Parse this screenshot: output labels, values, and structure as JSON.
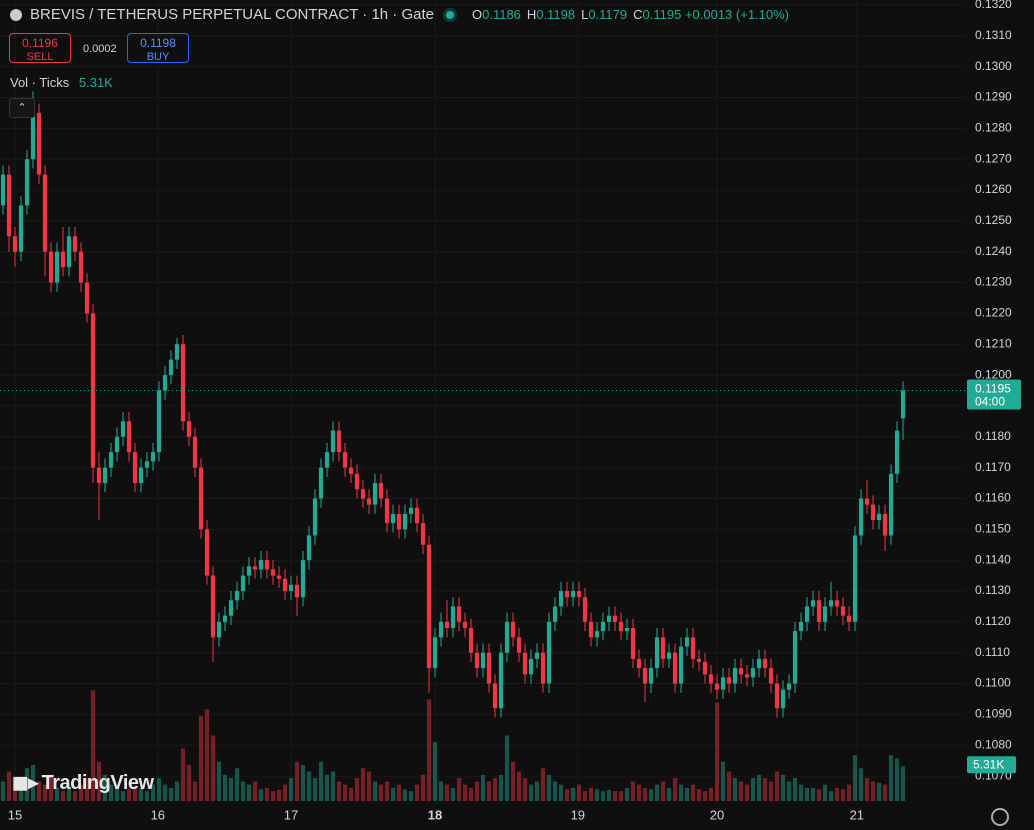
{
  "header": {
    "title": "BREVIS / TETHERUS PERPETUAL CONTRACT · 1h · Gate",
    "o": "O",
    "h": "H",
    "l": "L",
    "c": "C",
    "change": "+0.0013 (+1.10%)",
    "sell_price": 0.1196,
    "sell": "SELL",
    "spread": 0.0002,
    "buy_price": 0.1198,
    "buy": "BUY",
    "vol_label": "Vol · Ticks",
    "countdown": "04:00",
    "watermark": "TradingView"
  },
  "chart_data": {
    "type": "candlestick",
    "up_color": "#22ab94",
    "down_color": "#f23645",
    "grid": true,
    "xlim": [
      -0.5,
      160.33
    ],
    "xticks": [
      {
        "value": 2,
        "label": "15"
      },
      {
        "value": 25.8,
        "label": "16"
      },
      {
        "value": 48,
        "label": "17"
      },
      {
        "value": 72,
        "label": "18"
      },
      {
        "value": 95.8,
        "label": "19"
      },
      {
        "value": 119,
        "label": "20"
      },
      {
        "value": 142.3,
        "label": "21"
      }
    ],
    "ylim": [
      0.10603,
      0.13216
    ],
    "yticks": [
      {
        "value": 0.107,
        "label": "0.1070"
      },
      {
        "value": 0.108,
        "label": "0.1080"
      },
      {
        "value": 0.109,
        "label": "0.1090"
      },
      {
        "value": 0.11,
        "label": "0.1100"
      },
      {
        "value": 0.111,
        "label": "0.1110"
      },
      {
        "value": 0.112,
        "label": "0.1120"
      },
      {
        "value": 0.113,
        "label": "0.1130"
      },
      {
        "value": 0.114,
        "label": "0.1140"
      },
      {
        "value": 0.115,
        "label": "0.1150"
      },
      {
        "value": 0.116,
        "label": "0.1160"
      },
      {
        "value": 0.117,
        "label": "0.1170"
      },
      {
        "value": 0.118,
        "label": "0.1180"
      },
      {
        "value": 0.119,
        "label": "0.1190"
      },
      {
        "value": 0.12,
        "label": "0.1200"
      },
      {
        "value": 0.121,
        "label": "0.1210"
      },
      {
        "value": 0.122,
        "label": "0.1220"
      },
      {
        "value": 0.123,
        "label": "0.1230"
      },
      {
        "value": 0.124,
        "label": "0.1240"
      },
      {
        "value": 0.125,
        "label": "0.1250"
      },
      {
        "value": 0.126,
        "label": "0.1260"
      },
      {
        "value": 0.127,
        "label": "0.1270"
      },
      {
        "value": 0.128,
        "label": "0.1280"
      },
      {
        "value": 0.129,
        "label": "0.1290"
      },
      {
        "value": 0.13,
        "label": "0.1300"
      },
      {
        "value": 0.131,
        "label": "0.1310"
      },
      {
        "value": 0.132,
        "label": "0.1320"
      }
    ],
    "volume_ylim": [
      0,
      20000
    ],
    "last_volume_label": "5.31K",
    "candles": [
      [
        0.1255,
        0.1268,
        0.1252,
        0.1265
      ],
      [
        0.1265,
        0.1268,
        0.124,
        0.1245
      ],
      [
        0.1245,
        0.1248,
        0.1235,
        0.124
      ],
      [
        0.124,
        0.1258,
        0.1237,
        0.1255
      ],
      [
        0.1255,
        0.1273,
        0.1252,
        0.127
      ],
      [
        0.127,
        0.1292,
        0.1267,
        0.1285
      ],
      [
        0.1285,
        0.1288,
        0.1262,
        0.1265
      ],
      [
        0.1265,
        0.1268,
        0.1232,
        0.124
      ],
      [
        0.124,
        0.1243,
        0.1227,
        0.123
      ],
      [
        0.123,
        0.1243,
        0.1227,
        0.124
      ],
      [
        0.124,
        0.1248,
        0.1232,
        0.1235
      ],
      [
        0.1235,
        0.1248,
        0.1232,
        0.1245
      ],
      [
        0.1245,
        0.1248,
        0.1237,
        0.124
      ],
      [
        0.124,
        0.1243,
        0.1227,
        0.123
      ],
      [
        0.123,
        0.1233,
        0.1217,
        0.122
      ],
      [
        0.122,
        0.1223,
        0.1165,
        0.117
      ],
      [
        0.117,
        0.1175,
        0.1153,
        0.1165
      ],
      [
        0.1165,
        0.1173,
        0.1162,
        0.117
      ],
      [
        0.117,
        0.1178,
        0.1167,
        0.1175
      ],
      [
        0.1175,
        0.1183,
        0.1172,
        0.118
      ],
      [
        0.118,
        0.1188,
        0.1177,
        0.1185
      ],
      [
        0.1185,
        0.1188,
        0.1172,
        0.1175
      ],
      [
        0.1175,
        0.1178,
        0.1162,
        0.1165
      ],
      [
        0.1165,
        0.1173,
        0.1162,
        0.117
      ],
      [
        0.117,
        0.1175,
        0.1167,
        0.1172
      ],
      [
        0.1172,
        0.1178,
        0.1169,
        0.1175
      ],
      [
        0.1175,
        0.1198,
        0.1172,
        0.1195
      ],
      [
        0.1195,
        0.1203,
        0.1192,
        0.12
      ],
      [
        0.12,
        0.1208,
        0.1197,
        0.1205
      ],
      [
        0.1205,
        0.1212,
        0.1202,
        0.121
      ],
      [
        0.121,
        0.1213,
        0.1182,
        0.1185
      ],
      [
        0.1185,
        0.1188,
        0.1177,
        0.118
      ],
      [
        0.118,
        0.1183,
        0.1167,
        0.117
      ],
      [
        0.117,
        0.1173,
        0.1147,
        0.115
      ],
      [
        0.115,
        0.1153,
        0.1132,
        0.1135
      ],
      [
        0.1135,
        0.1138,
        0.1107,
        0.1115
      ],
      [
        0.1115,
        0.1123,
        0.1112,
        0.112
      ],
      [
        0.112,
        0.1125,
        0.1117,
        0.1122
      ],
      [
        0.1122,
        0.113,
        0.1119,
        0.1127
      ],
      [
        0.1127,
        0.1133,
        0.1124,
        0.113
      ],
      [
        0.113,
        0.1138,
        0.1127,
        0.1135
      ],
      [
        0.1135,
        0.1141,
        0.1132,
        0.1138
      ],
      [
        0.1138,
        0.1141,
        0.1134,
        0.1137
      ],
      [
        0.1137,
        0.1143,
        0.1134,
        0.114
      ],
      [
        0.114,
        0.1143,
        0.1134,
        0.1137
      ],
      [
        0.1137,
        0.114,
        0.1132,
        0.1135
      ],
      [
        0.1135,
        0.1138,
        0.1131,
        0.1134
      ],
      [
        0.1134,
        0.1137,
        0.1127,
        0.113
      ],
      [
        0.113,
        0.1135,
        0.1127,
        0.1132
      ],
      [
        0.1132,
        0.1135,
        0.1122,
        0.1128
      ],
      [
        0.1128,
        0.1143,
        0.1125,
        0.114
      ],
      [
        0.114,
        0.1151,
        0.1137,
        0.1148
      ],
      [
        0.1148,
        0.1163,
        0.1145,
        0.116
      ],
      [
        0.116,
        0.1173,
        0.1157,
        0.117
      ],
      [
        0.117,
        0.1178,
        0.1167,
        0.1175
      ],
      [
        0.1175,
        0.1185,
        0.1172,
        0.1182
      ],
      [
        0.1182,
        0.1185,
        0.1172,
        0.1175
      ],
      [
        0.1175,
        0.1178,
        0.1167,
        0.117
      ],
      [
        0.117,
        0.1173,
        0.1165,
        0.1168
      ],
      [
        0.1168,
        0.1171,
        0.116,
        0.1163
      ],
      [
        0.1163,
        0.1166,
        0.1157,
        0.116
      ],
      [
        0.116,
        0.1163,
        0.1155,
        0.1158
      ],
      [
        0.1158,
        0.1168,
        0.1155,
        0.1165
      ],
      [
        0.1165,
        0.1168,
        0.1157,
        0.116
      ],
      [
        0.116,
        0.1163,
        0.1149,
        0.1152
      ],
      [
        0.1152,
        0.1158,
        0.1149,
        0.1155
      ],
      [
        0.1155,
        0.1158,
        0.1147,
        0.115
      ],
      [
        0.115,
        0.1158,
        0.1147,
        0.1155
      ],
      [
        0.1155,
        0.116,
        0.1152,
        0.1157
      ],
      [
        0.1157,
        0.116,
        0.1149,
        0.1152
      ],
      [
        0.1152,
        0.1155,
        0.1142,
        0.1145
      ],
      [
        0.1145,
        0.1148,
        0.1097,
        0.1105
      ],
      [
        0.1105,
        0.1118,
        0.1102,
        0.1115
      ],
      [
        0.1115,
        0.1123,
        0.1112,
        0.112
      ],
      [
        0.112,
        0.1127,
        0.1115,
        0.1118
      ],
      [
        0.1118,
        0.1128,
        0.1115,
        0.1125
      ],
      [
        0.1125,
        0.1128,
        0.1117,
        0.112
      ],
      [
        0.112,
        0.1123,
        0.1115,
        0.1118
      ],
      [
        0.1118,
        0.1121,
        0.1107,
        0.111
      ],
      [
        0.111,
        0.1113,
        0.1102,
        0.1105
      ],
      [
        0.1105,
        0.1113,
        0.1102,
        0.111
      ],
      [
        0.111,
        0.1113,
        0.1097,
        0.11
      ],
      [
        0.11,
        0.1103,
        0.1089,
        0.1092
      ],
      [
        0.1092,
        0.1113,
        0.1089,
        0.111
      ],
      [
        0.111,
        0.1123,
        0.1107,
        0.112
      ],
      [
        0.112,
        0.1123,
        0.1112,
        0.1115
      ],
      [
        0.1115,
        0.1118,
        0.1107,
        0.111
      ],
      [
        0.111,
        0.1113,
        0.11,
        0.1103
      ],
      [
        0.1103,
        0.1111,
        0.11,
        0.1108
      ],
      [
        0.1108,
        0.1113,
        0.1105,
        0.111
      ],
      [
        0.111,
        0.1113,
        0.1097,
        0.11
      ],
      [
        0.11,
        0.1123,
        0.1097,
        0.112
      ],
      [
        0.112,
        0.1128,
        0.1117,
        0.1125
      ],
      [
        0.1125,
        0.1133,
        0.1122,
        0.113
      ],
      [
        0.113,
        0.1133,
        0.1125,
        0.1128
      ],
      [
        0.1128,
        0.1133,
        0.1125,
        0.113
      ],
      [
        0.113,
        0.1133,
        0.1125,
        0.1128
      ],
      [
        0.1128,
        0.1131,
        0.1117,
        0.112
      ],
      [
        0.112,
        0.1123,
        0.1112,
        0.1115
      ],
      [
        0.1115,
        0.112,
        0.1112,
        0.1117
      ],
      [
        0.1117,
        0.1123,
        0.1114,
        0.112
      ],
      [
        0.112,
        0.1125,
        0.1117,
        0.1122
      ],
      [
        0.1122,
        0.1125,
        0.1117,
        0.112
      ],
      [
        0.112,
        0.1123,
        0.1114,
        0.1117
      ],
      [
        0.1117,
        0.1121,
        0.1114,
        0.1118
      ],
      [
        0.1118,
        0.1121,
        0.1105,
        0.1108
      ],
      [
        0.1108,
        0.1111,
        0.1102,
        0.1105
      ],
      [
        0.1105,
        0.1108,
        0.1094,
        0.11
      ],
      [
        0.11,
        0.1108,
        0.1097,
        0.1105
      ],
      [
        0.1105,
        0.1118,
        0.1102,
        0.1115
      ],
      [
        0.1115,
        0.1118,
        0.1105,
        0.1108
      ],
      [
        0.1108,
        0.1113,
        0.1105,
        0.111
      ],
      [
        0.111,
        0.1113,
        0.1097,
        0.11
      ],
      [
        0.11,
        0.1115,
        0.1097,
        0.1112
      ],
      [
        0.1112,
        0.1118,
        0.1109,
        0.1115
      ],
      [
        0.1115,
        0.1118,
        0.1105,
        0.1108
      ],
      [
        0.1108,
        0.1111,
        0.1104,
        0.1107
      ],
      [
        0.1107,
        0.111,
        0.11,
        0.1103
      ],
      [
        0.1103,
        0.1106,
        0.1097,
        0.11
      ],
      [
        0.11,
        0.1103,
        0.1095,
        0.1098
      ],
      [
        0.1098,
        0.1105,
        0.1095,
        0.1102
      ],
      [
        0.1102,
        0.1105,
        0.1097,
        0.11
      ],
      [
        0.11,
        0.1108,
        0.1097,
        0.1105
      ],
      [
        0.1105,
        0.1108,
        0.11,
        0.1103
      ],
      [
        0.1103,
        0.1106,
        0.1099,
        0.1102
      ],
      [
        0.1102,
        0.1108,
        0.1099,
        0.1105
      ],
      [
        0.1105,
        0.1111,
        0.1102,
        0.1108
      ],
      [
        0.1108,
        0.1111,
        0.1102,
        0.1105
      ],
      [
        0.1105,
        0.1108,
        0.1097,
        0.11
      ],
      [
        0.11,
        0.1103,
        0.1089,
        0.1092
      ],
      [
        0.1092,
        0.1101,
        0.1089,
        0.1098
      ],
      [
        0.1098,
        0.1103,
        0.1095,
        0.11
      ],
      [
        0.11,
        0.112,
        0.1097,
        0.1117
      ],
      [
        0.1117,
        0.1123,
        0.1114,
        0.112
      ],
      [
        0.112,
        0.1128,
        0.1117,
        0.1125
      ],
      [
        0.1125,
        0.113,
        0.1122,
        0.1127
      ],
      [
        0.1127,
        0.113,
        0.1117,
        0.112
      ],
      [
        0.112,
        0.1128,
        0.1117,
        0.1125
      ],
      [
        0.1125,
        0.1133,
        0.1122,
        0.1127
      ],
      [
        0.1127,
        0.113,
        0.1122,
        0.1125
      ],
      [
        0.1125,
        0.1128,
        0.1119,
        0.1122
      ],
      [
        0.1122,
        0.1125,
        0.1117,
        0.112
      ],
      [
        0.112,
        0.1151,
        0.1117,
        0.1148
      ],
      [
        0.1148,
        0.1163,
        0.1145,
        0.116
      ],
      [
        0.116,
        0.1166,
        0.1155,
        0.1158
      ],
      [
        0.1158,
        0.1161,
        0.115,
        0.1153
      ],
      [
        0.1153,
        0.1158,
        0.115,
        0.1155
      ],
      [
        0.1155,
        0.1158,
        0.1143,
        0.1148
      ],
      [
        0.1148,
        0.1171,
        0.1145,
        0.1168
      ],
      [
        0.1168,
        0.1185,
        0.1165,
        0.1182
      ],
      [
        0.1186,
        0.1198,
        0.1179,
        0.1195
      ]
    ],
    "volume": [
      3000,
      4500,
      3500,
      2500,
      5000,
      5500,
      3000,
      2500,
      4000,
      2000,
      1500,
      2000,
      1500,
      2500,
      3500,
      16900,
      6000,
      4000,
      2500,
      2000,
      1500,
      1800,
      2200,
      2000,
      1500,
      2500,
      3500,
      2500,
      2000,
      3000,
      8000,
      5500,
      3000,
      13000,
      14000,
      10000,
      6000,
      4000,
      3500,
      5000,
      3000,
      2500,
      3000,
      1800,
      2000,
      1500,
      1700,
      2500,
      3500,
      6000,
      5500,
      4500,
      3500,
      6000,
      4000,
      4500,
      3000,
      2500,
      2000,
      3500,
      5000,
      4500,
      3000,
      2500,
      3000,
      2000,
      2500,
      1800,
      1500,
      2500,
      4000,
      15500,
      9000,
      3000,
      2500,
      2000,
      3500,
      2500,
      2000,
      3000,
      4000,
      3000,
      3500,
      4000,
      10000,
      6000,
      4500,
      3500,
      2500,
      3000,
      5000,
      4000,
      3000,
      2500,
      1800,
      2000,
      2500,
      1500,
      2000,
      1800,
      1500,
      1700,
      1500,
      1500,
      2000,
      3000,
      2500,
      2000,
      1800,
      2500,
      3000,
      2000,
      3500,
      2500,
      2000,
      2500,
      1800,
      1500,
      2000,
      15000,
      6000,
      4500,
      3500,
      3000,
      2500,
      3500,
      4000,
      3500,
      3000,
      4500,
      4000,
      3000,
      3500,
      2500,
      2000,
      2000,
      1800,
      2500,
      1500,
      2000,
      1800,
      2500,
      7000,
      5000,
      3500,
      3000,
      2800,
      2500,
      7000,
      6500,
      5310
    ]
  }
}
